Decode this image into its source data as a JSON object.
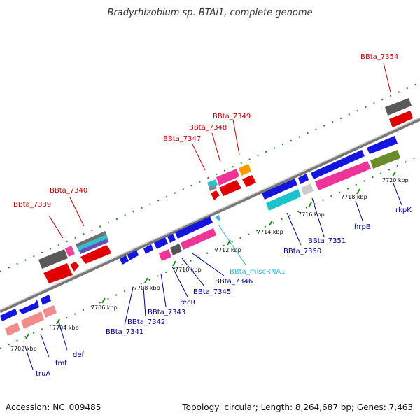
{
  "title": "Bradyrhizobium sp. BTAi1, complete genome",
  "footer": {
    "accession": "Accession: NC_009485",
    "summary": "Topology: circular; Length: 8,264,687 bp; Genes: 7,463"
  },
  "colors": {
    "label_top": "#cc0000",
    "label_bottom": "#00008b",
    "label_mirna": "#33b5d6",
    "backbone": "#8a8a8a",
    "dot_track": "#1f8a1f"
  },
  "ticks": [
    {
      "label": "7702 kbp"
    },
    {
      "label": "7704 kbp"
    },
    {
      "label": "7706 kbp"
    },
    {
      "label": "7708 kbp"
    },
    {
      "label": "7710 kbp"
    },
    {
      "label": "7712 kbp"
    },
    {
      "label": "7714 kbp"
    },
    {
      "label": "7716 kbp"
    },
    {
      "label": "7718 kbp"
    },
    {
      "label": "7720 kbp"
    }
  ],
  "top_labels": [
    {
      "text": "BBta_7339"
    },
    {
      "text": "BBta_7340"
    },
    {
      "text": "BBta_7347"
    },
    {
      "text": "BBta_7348"
    },
    {
      "text": "BBta_7349"
    },
    {
      "text": "BBta_7354"
    }
  ],
  "bottom_labels": [
    {
      "text": "truA"
    },
    {
      "text": "fmt"
    },
    {
      "text": "def"
    },
    {
      "text": "BBta_7341"
    },
    {
      "text": "BBta_7342"
    },
    {
      "text": "BBta_7343"
    },
    {
      "text": "recR"
    },
    {
      "text": "BBta_7345"
    },
    {
      "text": "BBta_7346"
    },
    {
      "text": "BBta_miscRNA1"
    },
    {
      "text": "BBta_7350"
    },
    {
      "text": "BBta_7351"
    },
    {
      "text": "hrpB"
    },
    {
      "text": "rkpK"
    }
  ]
}
